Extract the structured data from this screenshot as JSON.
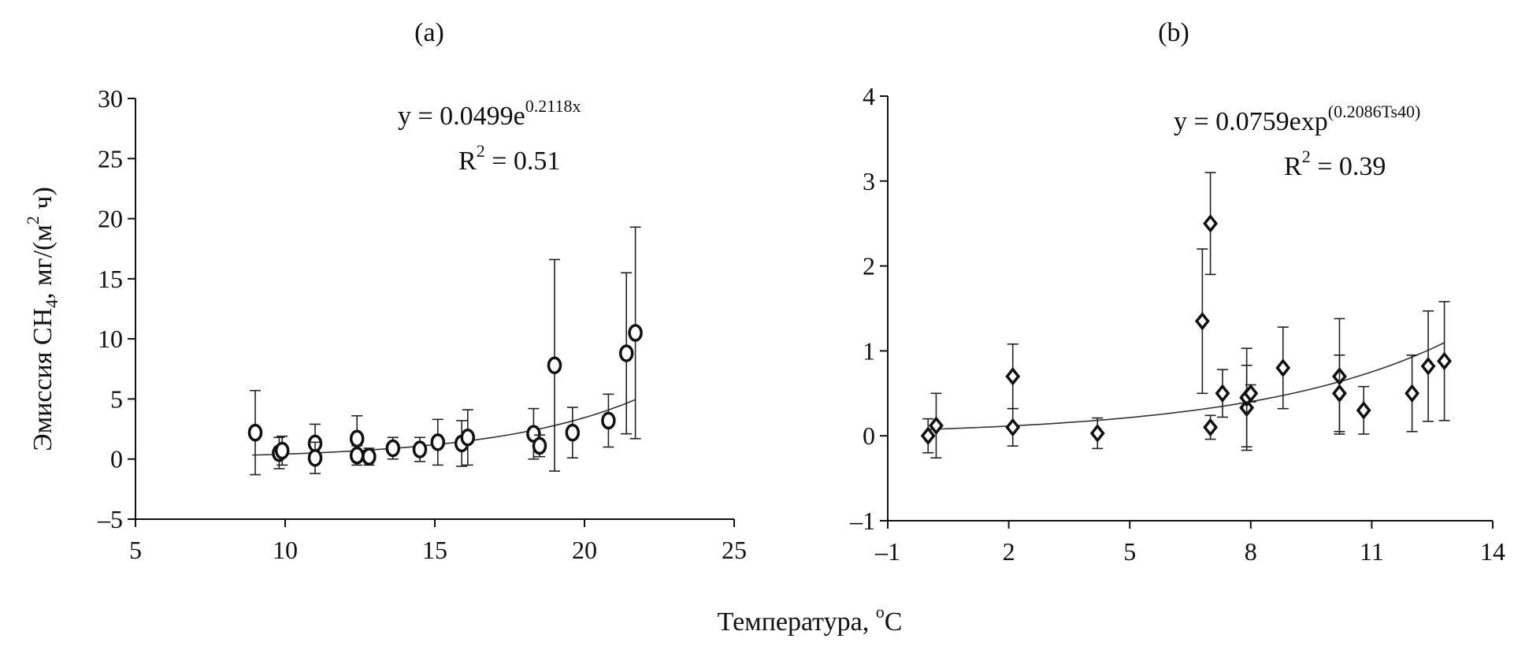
{
  "chart_data": [
    {
      "id": "a",
      "type": "scatter",
      "panel_label": "(a)",
      "equation": {
        "prefix": "y = 0.0499e",
        "exponent": "0.2118x",
        "r2_label": "R",
        "r2_sup": "2",
        "r2_value": " = 0.51"
      },
      "fit": {
        "a": 0.0499,
        "b": 0.2118,
        "x_from": 8.9,
        "x_to": 21.7
      },
      "xlim": [
        5,
        25
      ],
      "ylim": [
        -5,
        30
      ],
      "xticks": [
        5,
        10,
        15,
        20,
        25
      ],
      "yticks": [
        -5,
        0,
        5,
        10,
        15,
        20,
        25,
        30
      ],
      "ytick_labels": [
        "–5",
        "0",
        "5",
        "10",
        "15",
        "20",
        "25",
        "30"
      ],
      "xtick_labels": [
        "5",
        "10",
        "15",
        "20",
        "25"
      ],
      "ylabel_parts": {
        "a": "Эмиссия CH",
        "sub": "4",
        "b": ", мг/(м",
        "sup": "2",
        "c": " ч)"
      },
      "points": [
        {
          "x": 9.0,
          "y": 2.2,
          "err": 3.5
        },
        {
          "x": 9.8,
          "y": 0.5,
          "err": 1.3
        },
        {
          "x": 9.9,
          "y": 0.7,
          "err": 1.2
        },
        {
          "x": 11.0,
          "y": 1.3,
          "err": 1.6
        },
        {
          "x": 11.0,
          "y": 0.1,
          "err": 1.3
        },
        {
          "x": 12.4,
          "y": 1.7,
          "err": 1.9
        },
        {
          "x": 12.4,
          "y": 0.3,
          "err": 0.8
        },
        {
          "x": 12.8,
          "y": 0.2,
          "err": 0.7
        },
        {
          "x": 13.6,
          "y": 0.9,
          "err": 0.9
        },
        {
          "x": 14.5,
          "y": 0.8,
          "err": 1.0
        },
        {
          "x": 15.1,
          "y": 1.4,
          "err": 1.9
        },
        {
          "x": 15.9,
          "y": 1.3,
          "err": 1.9
        },
        {
          "x": 16.1,
          "y": 1.8,
          "err": 2.3
        },
        {
          "x": 18.3,
          "y": 2.1,
          "err": 2.1
        },
        {
          "x": 18.5,
          "y": 1.1,
          "err": 0.9
        },
        {
          "x": 19.0,
          "y": 7.8,
          "err": 8.8
        },
        {
          "x": 19.6,
          "y": 2.2,
          "err": 2.1
        },
        {
          "x": 20.8,
          "y": 3.2,
          "err": 2.2
        },
        {
          "x": 21.4,
          "y": 8.8,
          "err": 6.7
        },
        {
          "x": 21.7,
          "y": 10.5,
          "err": 8.8
        }
      ]
    },
    {
      "id": "b",
      "type": "scatter",
      "panel_label": "(b)",
      "equation": {
        "prefix": "y = 0.0759exp",
        "exponent": "(0.2086Ts40)",
        "r2_label": "R",
        "r2_sup": "2",
        "r2_value": " = 0.39"
      },
      "fit": {
        "a": 0.0759,
        "b": 0.2086,
        "x_from": 0.0,
        "x_to": 12.8
      },
      "xlim": [
        -1,
        14
      ],
      "ylim": [
        -1,
        4
      ],
      "xticks": [
        -1,
        2,
        5,
        8,
        11,
        14
      ],
      "yticks": [
        -1,
        0,
        1,
        2,
        3,
        4
      ],
      "ytick_labels": [
        "–1",
        "0",
        "1",
        "2",
        "3",
        "4"
      ],
      "xtick_labels": [
        "–1",
        "2",
        "5",
        "8",
        "11",
        "14"
      ],
      "points": [
        {
          "x": 0.0,
          "y": 0.0,
          "err": 0.2
        },
        {
          "x": 0.2,
          "y": 0.12,
          "err": 0.38
        },
        {
          "x": 2.1,
          "y": 0.7,
          "err": 0.38
        },
        {
          "x": 2.1,
          "y": 0.1,
          "err": 0.22
        },
        {
          "x": 4.2,
          "y": 0.03,
          "err": 0.18
        },
        {
          "x": 6.8,
          "y": 1.35,
          "err": 0.85
        },
        {
          "x": 7.0,
          "y": 2.5,
          "err": 0.6
        },
        {
          "x": 7.0,
          "y": 0.1,
          "err": 0.14
        },
        {
          "x": 7.3,
          "y": 0.5,
          "err": 0.28
        },
        {
          "x": 7.9,
          "y": 0.33,
          "err": 0.5
        },
        {
          "x": 7.9,
          "y": 0.45,
          "err": 0.58
        },
        {
          "x": 8.0,
          "y": 0.5,
          "err": 0.1
        },
        {
          "x": 8.8,
          "y": 0.8,
          "err": 0.48
        },
        {
          "x": 10.2,
          "y": 0.7,
          "err": 0.68
        },
        {
          "x": 10.2,
          "y": 0.5,
          "err": 0.45
        },
        {
          "x": 10.8,
          "y": 0.3,
          "err": 0.28
        },
        {
          "x": 12.0,
          "y": 0.5,
          "err": 0.45
        },
        {
          "x": 12.4,
          "y": 0.82,
          "err": 0.65
        },
        {
          "x": 12.8,
          "y": 0.88,
          "err": 0.7
        }
      ]
    }
  ],
  "shared": {
    "xlabel": "Температура, ",
    "xlabel_sup": "o",
    "xlabel_unit": "C"
  }
}
